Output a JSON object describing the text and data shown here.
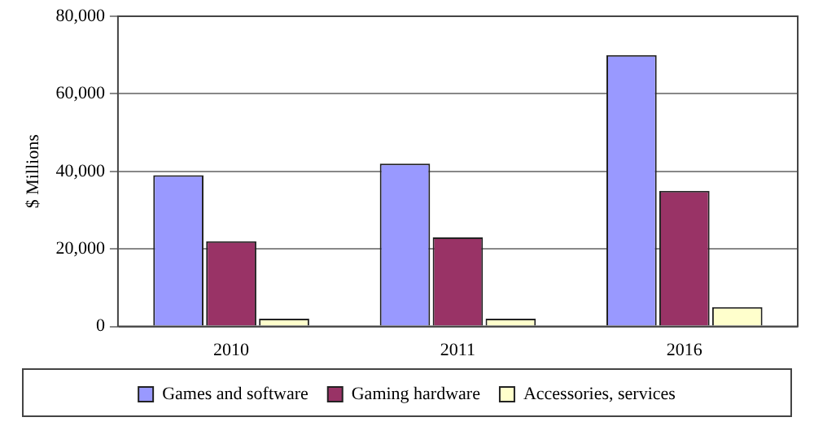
{
  "chart_data": {
    "type": "bar",
    "ylabel": "$ Millions",
    "categories": [
      "2010",
      "2011",
      "2016"
    ],
    "series": [
      {
        "name": "Games and software",
        "color": "#9999ff",
        "values": [
          39000,
          42000,
          70000
        ]
      },
      {
        "name": "Gaming hardware",
        "color": "#993366",
        "values": [
          22000,
          23000,
          35000
        ]
      },
      {
        "name": "Accessories, services",
        "color": "#ffffcc",
        "values": [
          2000,
          2000,
          5000
        ]
      }
    ],
    "ylim": [
      0,
      80000
    ],
    "yticks": [
      0,
      {
        "value": 20000,
        "label": "20,000"
      },
      {
        "value": 40000,
        "label": "40,000"
      },
      {
        "value": 60000,
        "label": "60,000"
      },
      {
        "value": 80000,
        "label": "80,000"
      }
    ],
    "grid": "y",
    "legend": "bottom"
  }
}
